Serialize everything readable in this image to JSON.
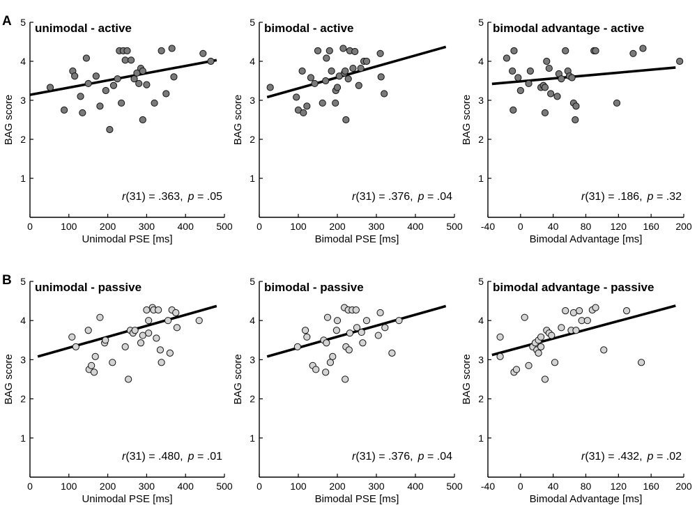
{
  "figure": {
    "row_labels": [
      "A",
      "B"
    ]
  },
  "colors": {
    "active_fill": "#7a7a7a",
    "passive_fill": "#d4d4d4",
    "marker_edge": "#111111",
    "line": "#000000"
  },
  "chart_data": [
    {
      "type": "scatter",
      "row": 0,
      "col": 0,
      "title": "unimodal - active",
      "xlabel": "Unimodal PSE [ms]",
      "ylabel": "BAG score",
      "xlim": [
        0,
        500
      ],
      "ylim": [
        0,
        5
      ],
      "xticks": [
        0,
        100,
        200,
        300,
        400,
        500
      ],
      "yticks": [
        1,
        2,
        3,
        4,
        5
      ],
      "stat": {
        "r_letter": "r",
        "df": "(31) = .363,",
        "p_letter": "p",
        "p_value": "= .05"
      },
      "fit": {
        "x": [
          0,
          480
        ],
        "y": [
          3.14,
          4.03
        ]
      },
      "points": [
        [
          52,
          3.33
        ],
        [
          88,
          2.75
        ],
        [
          110,
          3.75
        ],
        [
          115,
          3.62
        ],
        [
          130,
          3.1
        ],
        [
          135,
          2.68
        ],
        [
          145,
          4.08
        ],
        [
          150,
          3.43
        ],
        [
          170,
          3.62
        ],
        [
          180,
          2.85
        ],
        [
          195,
          3.25
        ],
        [
          205,
          2.25
        ],
        [
          215,
          3.38
        ],
        [
          225,
          3.55
        ],
        [
          230,
          4.27
        ],
        [
          235,
          2.93
        ],
        [
          240,
          4.27
        ],
        [
          245,
          4.03
        ],
        [
          250,
          4.27
        ],
        [
          260,
          4.03
        ],
        [
          268,
          3.55
        ],
        [
          275,
          3.7
        ],
        [
          280,
          3.43
        ],
        [
          285,
          3.82
        ],
        [
          290,
          3.75
        ],
        [
          290,
          2.5
        ],
        [
          300,
          3.4
        ],
        [
          320,
          2.93
        ],
        [
          338,
          4.27
        ],
        [
          350,
          3.17
        ],
        [
          365,
          4.33
        ],
        [
          370,
          3.6
        ],
        [
          445,
          4.2
        ],
        [
          465,
          4.0
        ]
      ],
      "marker": "active"
    },
    {
      "type": "scatter",
      "row": 0,
      "col": 1,
      "title": "bimodal - active",
      "xlabel": "Bimodal PSE [ms]",
      "ylabel": "BAG score",
      "xlim": [
        0,
        500
      ],
      "ylim": [
        0,
        5
      ],
      "xticks": [
        0,
        100,
        200,
        300,
        400,
        500
      ],
      "yticks": [
        1,
        2,
        3,
        4,
        5
      ],
      "stat": {
        "r_letter": "r",
        "df": "(31) = .376,",
        "p_letter": "p",
        "p_value": "= .04"
      },
      "fit": {
        "x": [
          20,
          478
        ],
        "y": [
          3.08,
          4.37
        ]
      },
      "points": [
        [
          28,
          3.33
        ],
        [
          95,
          3.08
        ],
        [
          100,
          2.75
        ],
        [
          110,
          3.75
        ],
        [
          113,
          2.68
        ],
        [
          122,
          2.85
        ],
        [
          132,
          3.58
        ],
        [
          142,
          3.43
        ],
        [
          150,
          4.27
        ],
        [
          162,
          2.93
        ],
        [
          170,
          3.5
        ],
        [
          172,
          4.08
        ],
        [
          180,
          4.27
        ],
        [
          185,
          3.75
        ],
        [
          195,
          2.93
        ],
        [
          196,
          3.25
        ],
        [
          200,
          3.33
        ],
        [
          205,
          3.62
        ],
        [
          215,
          4.33
        ],
        [
          218,
          3.7
        ],
        [
          220,
          3.75
        ],
        [
          222,
          2.5
        ],
        [
          228,
          3.55
        ],
        [
          232,
          4.27
        ],
        [
          240,
          3.82
        ],
        [
          245,
          4.25
        ],
        [
          255,
          3.38
        ],
        [
          260,
          3.82
        ],
        [
          268,
          4.0
        ],
        [
          275,
          4.0
        ],
        [
          310,
          4.2
        ],
        [
          312,
          3.6
        ],
        [
          320,
          3.17
        ]
      ],
      "marker": "active"
    },
    {
      "type": "scatter",
      "row": 0,
      "col": 2,
      "title": "bimodal advantage - active",
      "xlabel": "Bimodal Advantage [ms]",
      "ylabel": "BAG score",
      "xlim": [
        -40,
        200
      ],
      "ylim": [
        0,
        5
      ],
      "xticks": [
        -40,
        0,
        40,
        80,
        120,
        160,
        200
      ],
      "yticks": [
        1,
        2,
        3,
        4,
        5
      ],
      "stat": {
        "r_letter": "r",
        "df": "(31) = .186,",
        "p_letter": "p",
        "p_value": "= .32"
      },
      "fit": {
        "x": [
          -35,
          190
        ],
        "y": [
          3.42,
          3.84
        ]
      },
      "points": [
        [
          -17,
          4.08
        ],
        [
          -10,
          3.75
        ],
        [
          -9,
          2.75
        ],
        [
          -8,
          4.27
        ],
        [
          -3,
          3.58
        ],
        [
          0,
          3.25
        ],
        [
          10,
          3.43
        ],
        [
          12,
          3.75
        ],
        [
          25,
          3.33
        ],
        [
          28,
          3.38
        ],
        [
          30,
          2.68
        ],
        [
          30,
          3.33
        ],
        [
          32,
          4.0
        ],
        [
          35,
          3.82
        ],
        [
          37,
          3.17
        ],
        [
          45,
          3.1
        ],
        [
          47,
          3.68
        ],
        [
          50,
          3.55
        ],
        [
          55,
          4.27
        ],
        [
          58,
          3.75
        ],
        [
          60,
          3.62
        ],
        [
          63,
          3.58
        ],
        [
          65,
          2.93
        ],
        [
          67,
          2.5
        ],
        [
          68,
          2.85
        ],
        [
          90,
          4.27
        ],
        [
          92,
          4.27
        ],
        [
          118,
          2.93
        ],
        [
          138,
          4.2
        ],
        [
          150,
          4.33
        ],
        [
          195,
          4.0
        ]
      ],
      "marker": "active"
    },
    {
      "type": "scatter",
      "row": 1,
      "col": 0,
      "title": "unimodal - passive",
      "xlabel": "Unimodal PSE [ms]",
      "ylabel": "BAG score",
      "xlim": [
        0,
        500
      ],
      "ylim": [
        0,
        5
      ],
      "xticks": [
        0,
        100,
        200,
        300,
        400,
        500
      ],
      "yticks": [
        1,
        2,
        3,
        4,
        5
      ],
      "stat": {
        "r_letter": "r",
        "df": "(31) = .480,",
        "p_letter": "p",
        "p_value": "= .01"
      },
      "fit": {
        "x": [
          20,
          480
        ],
        "y": [
          3.08,
          4.37
        ]
      },
      "points": [
        [
          108,
          3.58
        ],
        [
          118,
          3.33
        ],
        [
          150,
          3.75
        ],
        [
          152,
          2.75
        ],
        [
          158,
          2.85
        ],
        [
          165,
          2.68
        ],
        [
          168,
          3.08
        ],
        [
          180,
          4.08
        ],
        [
          192,
          3.43
        ],
        [
          194,
          3.5
        ],
        [
          212,
          2.93
        ],
        [
          245,
          3.33
        ],
        [
          253,
          2.5
        ],
        [
          258,
          3.75
        ],
        [
          265,
          3.68
        ],
        [
          270,
          3.75
        ],
        [
          285,
          3.43
        ],
        [
          290,
          3.62
        ],
        [
          300,
          4.27
        ],
        [
          305,
          4.0
        ],
        [
          305,
          3.68
        ],
        [
          315,
          4.33
        ],
        [
          318,
          4.27
        ],
        [
          325,
          3.55
        ],
        [
          330,
          4.27
        ],
        [
          335,
          3.25
        ],
        [
          338,
          2.93
        ],
        [
          355,
          4.0
        ],
        [
          360,
          3.17
        ],
        [
          365,
          4.27
        ],
        [
          375,
          4.2
        ],
        [
          378,
          3.82
        ],
        [
          435,
          4.0
        ]
      ],
      "marker": "passive"
    },
    {
      "type": "scatter",
      "row": 1,
      "col": 1,
      "title": "bimodal - passive",
      "xlabel": "Bimodal PSE [ms]",
      "ylabel": "BAG score",
      "xlim": [
        0,
        500
      ],
      "ylim": [
        0,
        5
      ],
      "xticks": [
        0,
        100,
        200,
        300,
        400,
        500
      ],
      "yticks": [
        1,
        2,
        3,
        4,
        5
      ],
      "stat": {
        "r_letter": "r",
        "df": "(31) = .376,",
        "p_letter": "p",
        "p_value": "= .04"
      },
      "fit": {
        "x": [
          20,
          478
        ],
        "y": [
          3.08,
          4.37
        ]
      },
      "points": [
        [
          98,
          3.33
        ],
        [
          118,
          3.75
        ],
        [
          122,
          3.58
        ],
        [
          137,
          2.85
        ],
        [
          145,
          2.75
        ],
        [
          165,
          3.5
        ],
        [
          170,
          2.68
        ],
        [
          172,
          3.43
        ],
        [
          175,
          4.08
        ],
        [
          182,
          2.93
        ],
        [
          188,
          3.08
        ],
        [
          198,
          3.75
        ],
        [
          200,
          4.0
        ],
        [
          218,
          4.33
        ],
        [
          220,
          2.5
        ],
        [
          222,
          3.33
        ],
        [
          228,
          4.27
        ],
        [
          230,
          3.25
        ],
        [
          232,
          3.68
        ],
        [
          238,
          4.27
        ],
        [
          248,
          4.27
        ],
        [
          250,
          3.82
        ],
        [
          262,
          3.7
        ],
        [
          265,
          3.43
        ],
        [
          275,
          4.0
        ],
        [
          305,
          3.62
        ],
        [
          310,
          4.2
        ],
        [
          322,
          3.82
        ],
        [
          340,
          3.17
        ],
        [
          358,
          4.0
        ]
      ],
      "marker": "passive"
    },
    {
      "type": "scatter",
      "row": 1,
      "col": 2,
      "title": "bimodal advantage - passive",
      "xlabel": "Bimodal Advantage [ms]",
      "ylabel": "BAG score",
      "xlim": [
        -40,
        200
      ],
      "ylim": [
        0,
        5
      ],
      "xticks": [
        -40,
        0,
        40,
        80,
        120,
        160,
        200
      ],
      "yticks": [
        1,
        2,
        3,
        4,
        5
      ],
      "stat": {
        "r_letter": "r",
        "df": "(31) = .432,",
        "p_letter": "p",
        "p_value": "= .02"
      },
      "fit": {
        "x": [
          -35,
          190
        ],
        "y": [
          3.12,
          4.38
        ]
      },
      "points": [
        [
          -25,
          3.58
        ],
        [
          -25,
          3.08
        ],
        [
          -8,
          2.68
        ],
        [
          -5,
          2.75
        ],
        [
          5,
          4.08
        ],
        [
          10,
          2.85
        ],
        [
          15,
          3.33
        ],
        [
          18,
          3.43
        ],
        [
          20,
          3.25
        ],
        [
          22,
          3.5
        ],
        [
          22,
          3.17
        ],
        [
          25,
          3.58
        ],
        [
          25,
          3.33
        ],
        [
          30,
          2.5
        ],
        [
          32,
          3.75
        ],
        [
          35,
          3.68
        ],
        [
          38,
          3.62
        ],
        [
          42,
          2.93
        ],
        [
          50,
          3.82
        ],
        [
          55,
          4.25
        ],
        [
          62,
          3.75
        ],
        [
          65,
          4.2
        ],
        [
          68,
          3.75
        ],
        [
          72,
          4.25
        ],
        [
          75,
          4.0
        ],
        [
          82,
          4.0
        ],
        [
          88,
          4.27
        ],
        [
          92,
          4.33
        ],
        [
          102,
          3.25
        ],
        [
          130,
          4.25
        ],
        [
          148,
          2.93
        ]
      ],
      "marker": "passive"
    }
  ]
}
